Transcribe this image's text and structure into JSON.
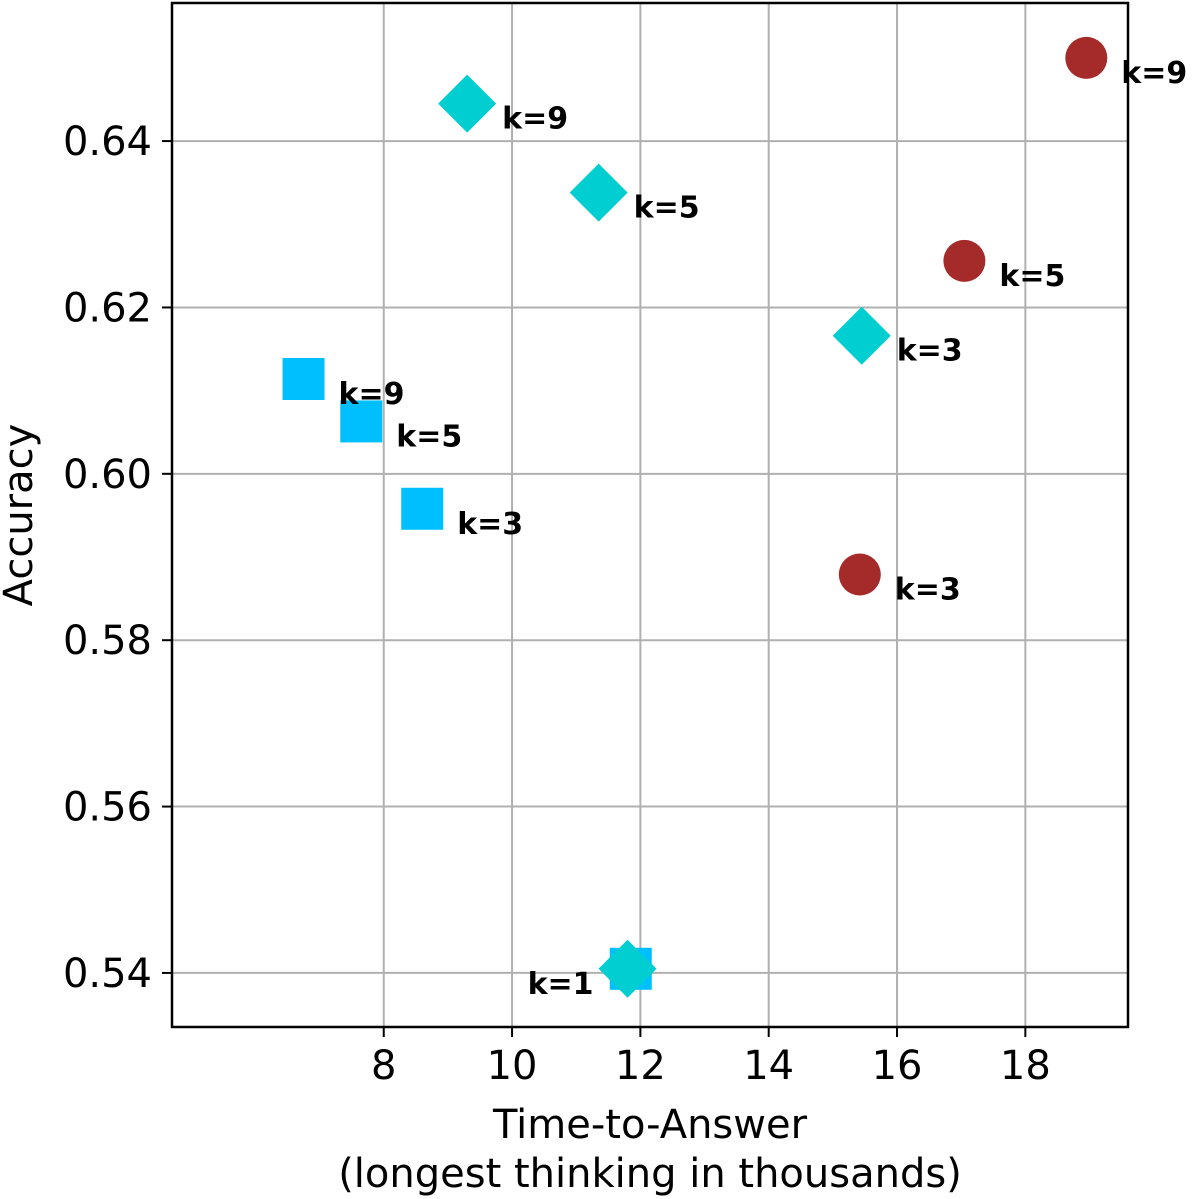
{
  "chart_data": {
    "type": "scatter",
    "title": "",
    "xlabel": "Time-to-Answer",
    "xlabel_line2": "(longest thinking in thousands)",
    "ylabel": "Accuracy",
    "xlim": [
      4.7,
      19.6
    ],
    "ylim": [
      0.5335,
      0.6566
    ],
    "xticks": [
      8,
      10,
      12,
      14,
      16,
      18
    ],
    "xtick_labels": [
      "8",
      "10",
      "12",
      "14",
      "16",
      "18"
    ],
    "yticks": [
      0.54,
      0.56,
      0.58,
      0.6,
      0.62,
      0.64
    ],
    "ytick_labels": [
      "0.54",
      "0.56",
      "0.58",
      "0.60",
      "0.62",
      "0.64"
    ],
    "grid": true,
    "series": [
      {
        "marker": "square",
        "color": "#00bfff",
        "points": [
          {
            "x": 11.85,
            "y": 0.5405,
            "label": ""
          },
          {
            "x": 8.6,
            "y": 0.5958,
            "label": "k=3"
          },
          {
            "x": 7.65,
            "y": 0.6063,
            "label": "k=5"
          },
          {
            "x": 6.75,
            "y": 0.6114,
            "label": "k=9"
          }
        ]
      },
      {
        "marker": "diamond",
        "color": "#00ced1",
        "points": [
          {
            "x": 11.8,
            "y": 0.5405,
            "label": "k=1"
          },
          {
            "x": 15.45,
            "y": 0.6166,
            "label": "k=3"
          },
          {
            "x": 11.35,
            "y": 0.6338,
            "label": "k=5"
          },
          {
            "x": 9.3,
            "y": 0.6445,
            "label": "k=9"
          }
        ]
      },
      {
        "marker": "circle",
        "color": "#a52a2a",
        "points": [
          {
            "x": 15.42,
            "y": 0.5879,
            "label": "k=3"
          },
          {
            "x": 17.05,
            "y": 0.6256,
            "label": "k=5"
          },
          {
            "x": 18.95,
            "y": 0.65,
            "label": "k=9"
          }
        ]
      }
    ]
  }
}
